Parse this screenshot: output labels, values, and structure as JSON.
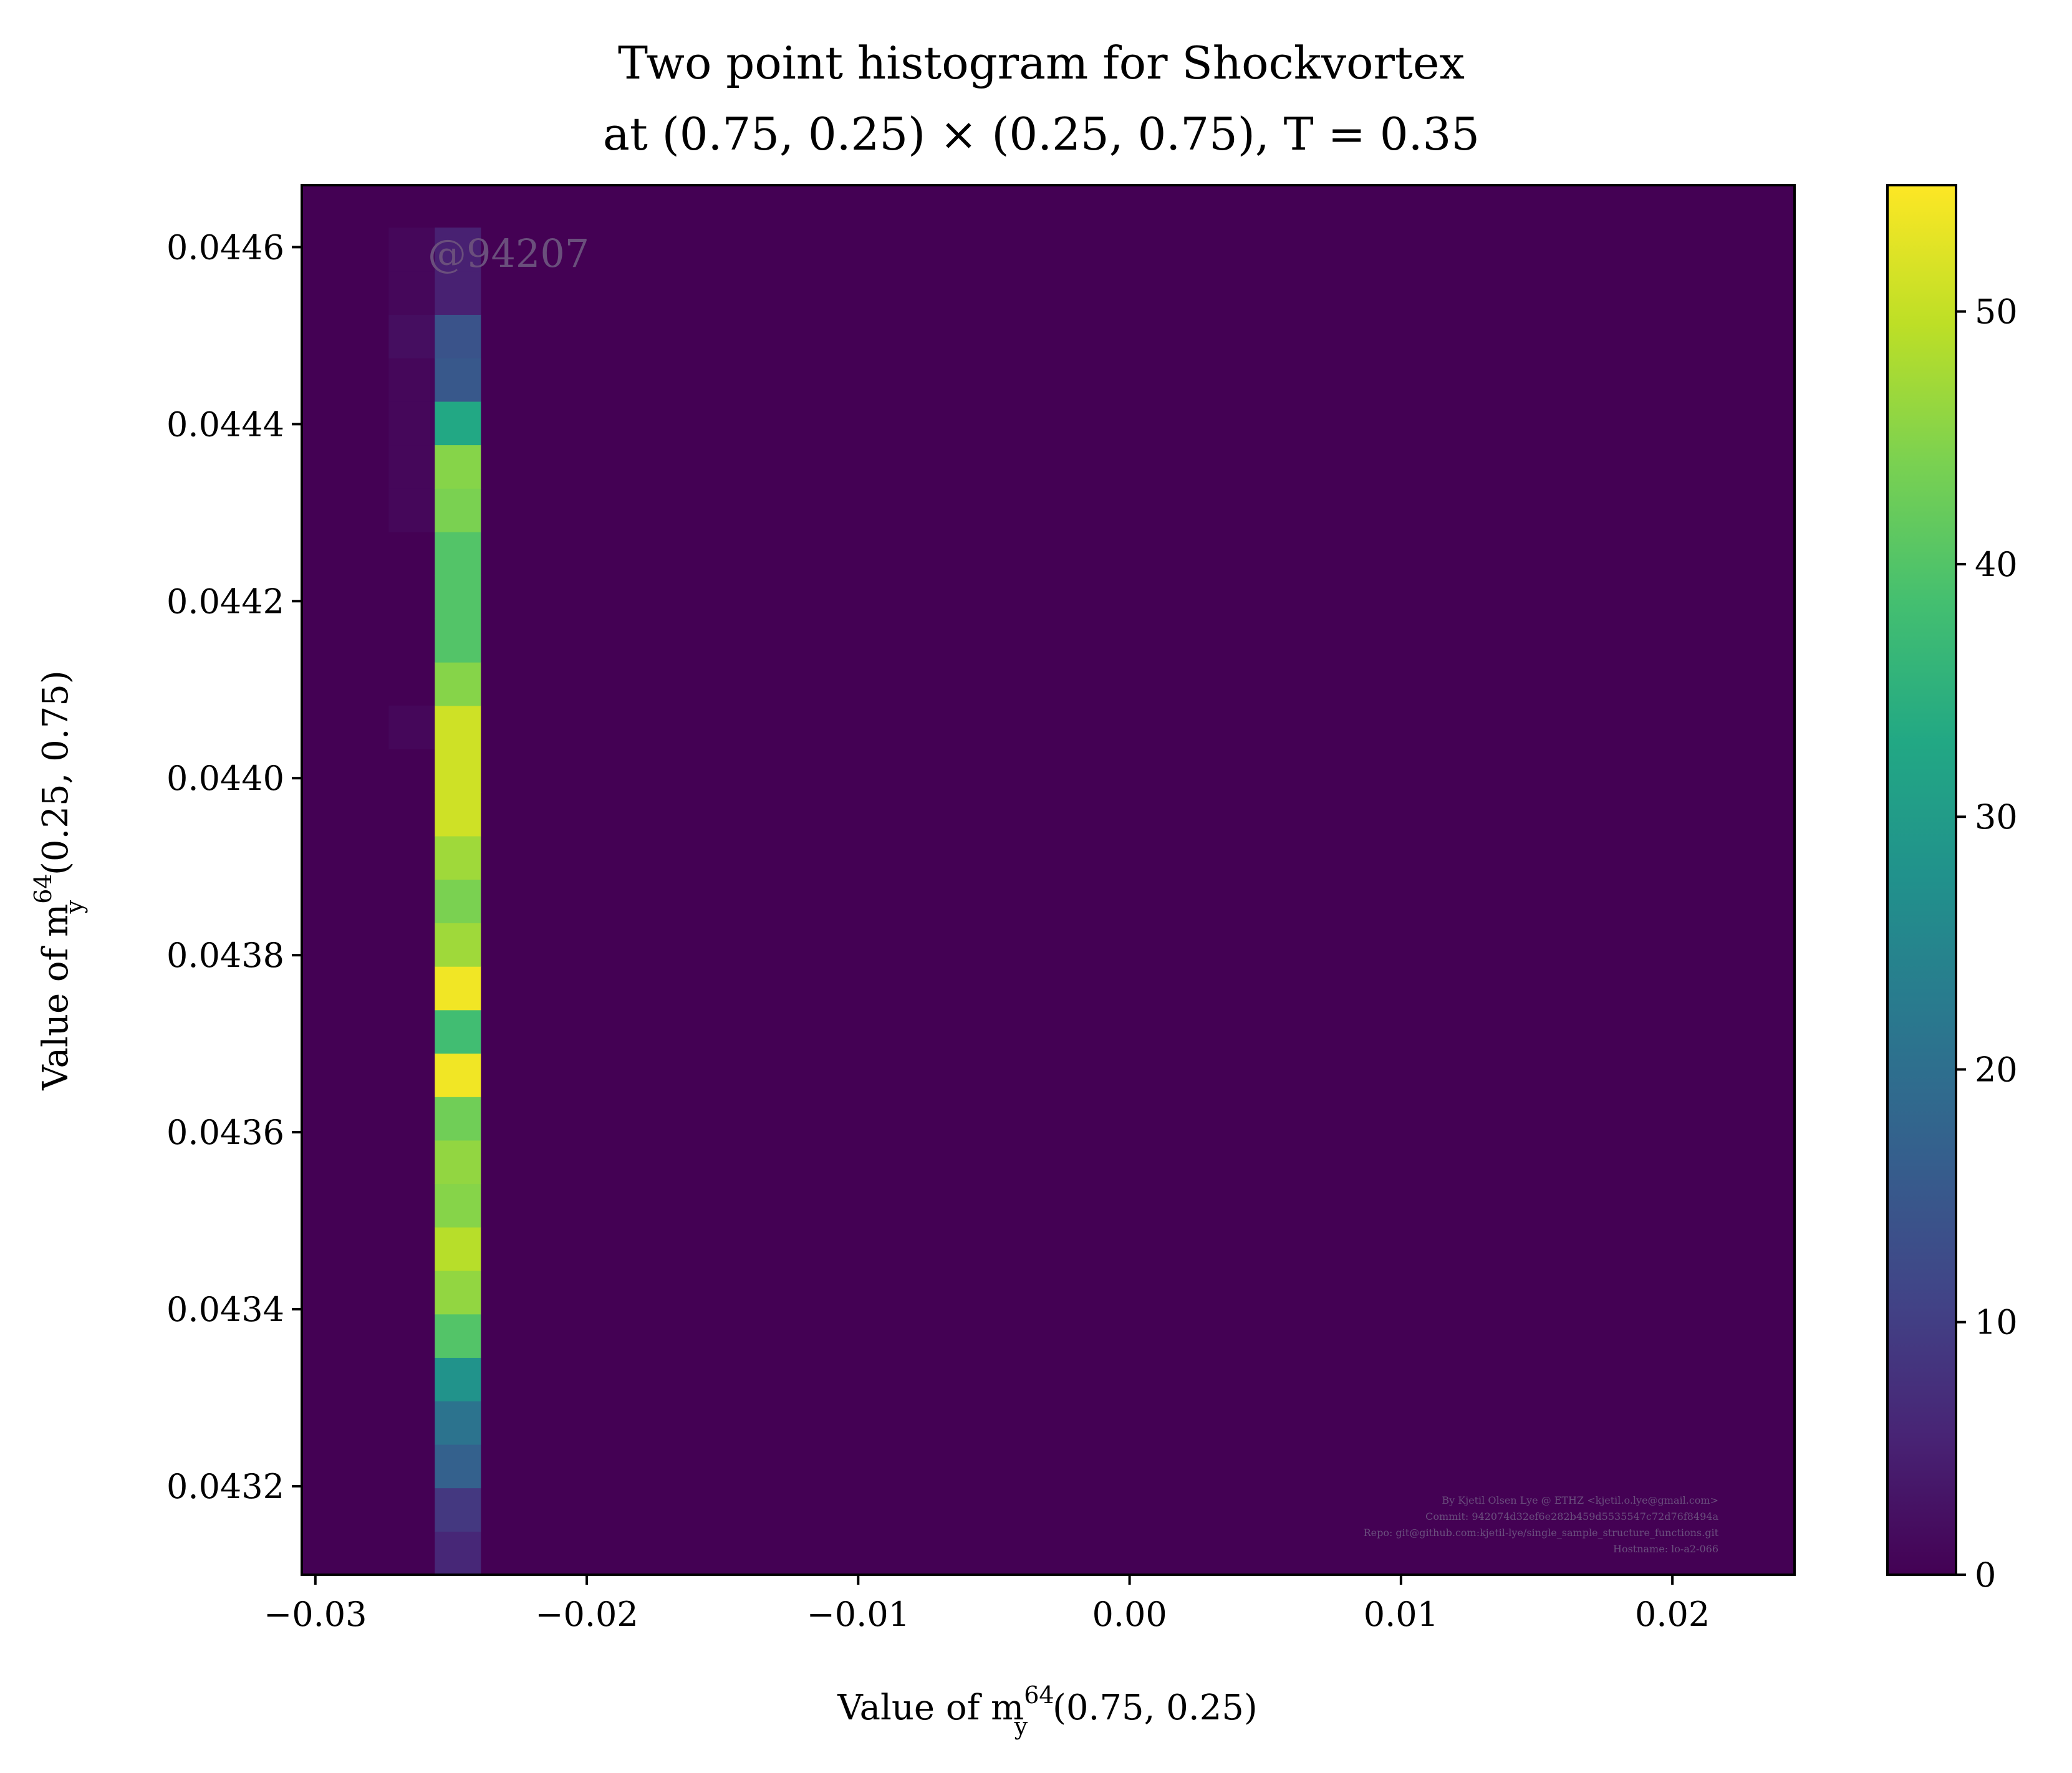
{
  "chart_data": {
    "type": "heatmap",
    "title_line1": "Two point histogram for Shockvortex",
    "title_line2": "at (0.75, 0.25) × (0.25, 0.75), T = 0.35",
    "xlabel_prefix": "Value of m",
    "xlabel_sup": "64",
    "xlabel_sub": "y",
    "xlabel_suffix": "(0.75, 0.25)",
    "ylabel_prefix": "Value of m",
    "ylabel_sup": "64",
    "ylabel_sub": "y",
    "ylabel_suffix": "(0.25, 0.75)",
    "xlim": [
      -0.0305,
      0.0245
    ],
    "ylim": [
      0.0431,
      0.04467
    ],
    "xticks": [
      -0.03,
      -0.02,
      -0.01,
      0.0,
      0.01,
      0.02
    ],
    "xtick_labels": [
      "−0.03",
      "−0.02",
      "−0.01",
      "0.00",
      "0.01",
      "0.02"
    ],
    "yticks": [
      0.0432,
      0.0434,
      0.0436,
      0.0438,
      0.044,
      0.0442,
      0.0444,
      0.0446
    ],
    "ytick_labels": [
      "0.0432",
      "0.0434",
      "0.0436",
      "0.0438",
      "0.0440",
      "0.0442",
      "0.0444",
      "0.0446"
    ],
    "colormap": "viridis",
    "colorbar_range": [
      0,
      55
    ],
    "colorbar_ticks": [
      0,
      10,
      20,
      30,
      40,
      50
    ],
    "colorbar_tick_labels": [
      "0",
      "10",
      "20",
      "30",
      "40",
      "50"
    ],
    "grid": false,
    "columns": [
      {
        "x_range": [
          -0.0273,
          -0.0256
        ],
        "y_start": 0.0431,
        "bin_height": 4.91e-05,
        "counts": [
          0,
          0,
          0,
          0,
          0,
          0,
          0,
          0,
          0,
          0,
          0,
          0,
          0,
          0,
          0,
          0,
          0,
          0,
          0,
          1,
          0,
          0,
          0,
          0,
          1,
          1,
          1,
          1,
          2,
          1,
          1,
          0,
          0,
          0
        ]
      },
      {
        "x_range": [
          -0.0256,
          -0.0239
        ],
        "y_start": 0.0431,
        "bin_height": 4.91e-05,
        "counts": [
          6,
          9,
          17,
          21,
          28,
          40,
          46,
          49,
          45,
          46,
          43,
          54,
          38,
          54,
          47,
          44,
          47,
          51,
          51,
          51,
          45,
          40,
          40,
          40,
          44,
          45,
          33,
          15,
          14,
          5,
          5
        ]
      }
    ]
  },
  "watermark": "@94207",
  "credits": [
    "By Kjetil Olsen Lye @ ETHZ <kjetil.o.lye@gmail.com>",
    "Commit: 942074d32ef6e282b459d5535547c72d76f8494a",
    "Repo: git@github.com:kjetil-lye/single_sample_structure_functions.git",
    "Hostname: lo-a2-066"
  ]
}
